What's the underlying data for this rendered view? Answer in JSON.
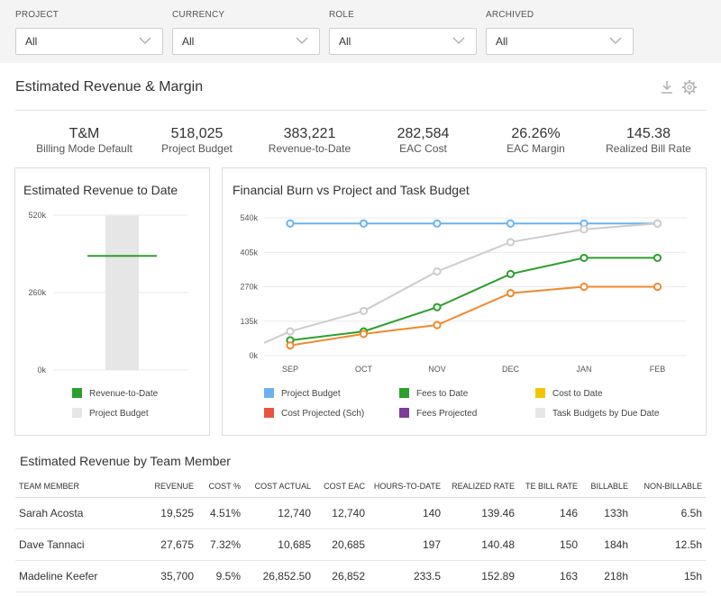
{
  "filters": [
    {
      "label": "PROJECT",
      "value": "All"
    },
    {
      "label": "CURRENCY",
      "value": "All"
    },
    {
      "label": "ROLE",
      "value": "All"
    },
    {
      "label": "ARCHIVED",
      "value": "All"
    }
  ],
  "header": {
    "title": "Estimated Revenue & Margin",
    "icons": [
      "download-icon",
      "gear-icon"
    ]
  },
  "kpis": [
    {
      "value": "T&M",
      "label": "Billing Mode Default"
    },
    {
      "value": "518,025",
      "label": "Project Budget"
    },
    {
      "value": "383,221",
      "label": "Revenue-to-Date"
    },
    {
      "value": "282,584",
      "label": "EAC Cost"
    },
    {
      "value": "26.26%",
      "label": "EAC Margin"
    },
    {
      "value": "145.38",
      "label": "Realized Bill Rate"
    }
  ],
  "chart_data": [
    {
      "type": "bar",
      "title": "Estimated Revenue to Date",
      "yticks": [
        "520k",
        "260k",
        "0k"
      ],
      "ylim": [
        0,
        520000
      ],
      "series": [
        {
          "name": "Revenue-to-Date",
          "values": [
            383221
          ],
          "color": "#2ca02c",
          "style": "marker-line"
        },
        {
          "name": "Project Budget",
          "values": [
            518025
          ],
          "color": "#e6e6e6",
          "style": "bar"
        }
      ],
      "legend": [
        "Revenue-to-Date",
        "Project Budget"
      ],
      "legend_colors": [
        "#2ca02c",
        "#e6e6e6"
      ]
    },
    {
      "type": "line",
      "title": "Financial Burn vs Project and Task Budget",
      "categories": [
        "SEP",
        "OCT",
        "NOV",
        "DEC",
        "JAN",
        "FEB"
      ],
      "yticks": [
        "540k",
        "405k",
        "270k",
        "135k",
        "0k"
      ],
      "ylim": [
        0,
        540000
      ],
      "series": [
        {
          "name": "Project Budget",
          "color": "#6cb2f0",
          "values": [
            518025,
            518025,
            518025,
            518025,
            518025,
            518025
          ]
        },
        {
          "name": "Task Budgets by Due Date",
          "color": "#cccccc",
          "lead_in": 50000,
          "values": [
            95000,
            175000,
            330000,
            445000,
            495000,
            518025
          ]
        },
        {
          "name": "Fees to Date",
          "color": "#2ca02c",
          "values": [
            60000,
            95000,
            190000,
            320000,
            383221,
            383221
          ]
        },
        {
          "name": "Cost Projected (Sch)",
          "color": "#f08a2e",
          "values": [
            40000,
            85000,
            120000,
            245000,
            270000,
            270000
          ]
        }
      ],
      "legend": [
        {
          "name": "Project Budget",
          "color": "#6cb2f0"
        },
        {
          "name": "Fees to Date",
          "color": "#2ca02c"
        },
        {
          "name": "Cost to Date",
          "color": "#f2c500"
        },
        {
          "name": "Cost Projected (Sch)",
          "color": "#e8543f"
        },
        {
          "name": "Fees Projected",
          "color": "#7d3c98"
        },
        {
          "name": "Task Budgets by Due Date",
          "color": "#e6e6e6"
        }
      ]
    }
  ],
  "team": {
    "title": "Estimated Revenue by Team Member",
    "columns": [
      "TEAM MEMBER",
      "REVENUE",
      "COST %",
      "COST ACTUAL",
      "COST EAC",
      "HOURS-TO-DATE",
      "REALIZED RATE",
      "TE BILL RATE",
      "BILLABLE",
      "NON-BILLABLE"
    ],
    "rows": [
      [
        "Sarah Acosta",
        "19,525",
        "4.51%",
        "12,740",
        "12,740",
        "140",
        "139.46",
        "146",
        "133h",
        "6.5h"
      ],
      [
        "Dave Tannaci",
        "27,675",
        "7.32%",
        "10,685",
        "20,685",
        "197",
        "140.48",
        "150",
        "184h",
        "12.5h"
      ],
      [
        "Madeline Keefer",
        "35,700",
        "9.5%",
        "26,852.50",
        "26,852",
        "233.5",
        "152.89",
        "163",
        "218h",
        "15h"
      ]
    ]
  }
}
